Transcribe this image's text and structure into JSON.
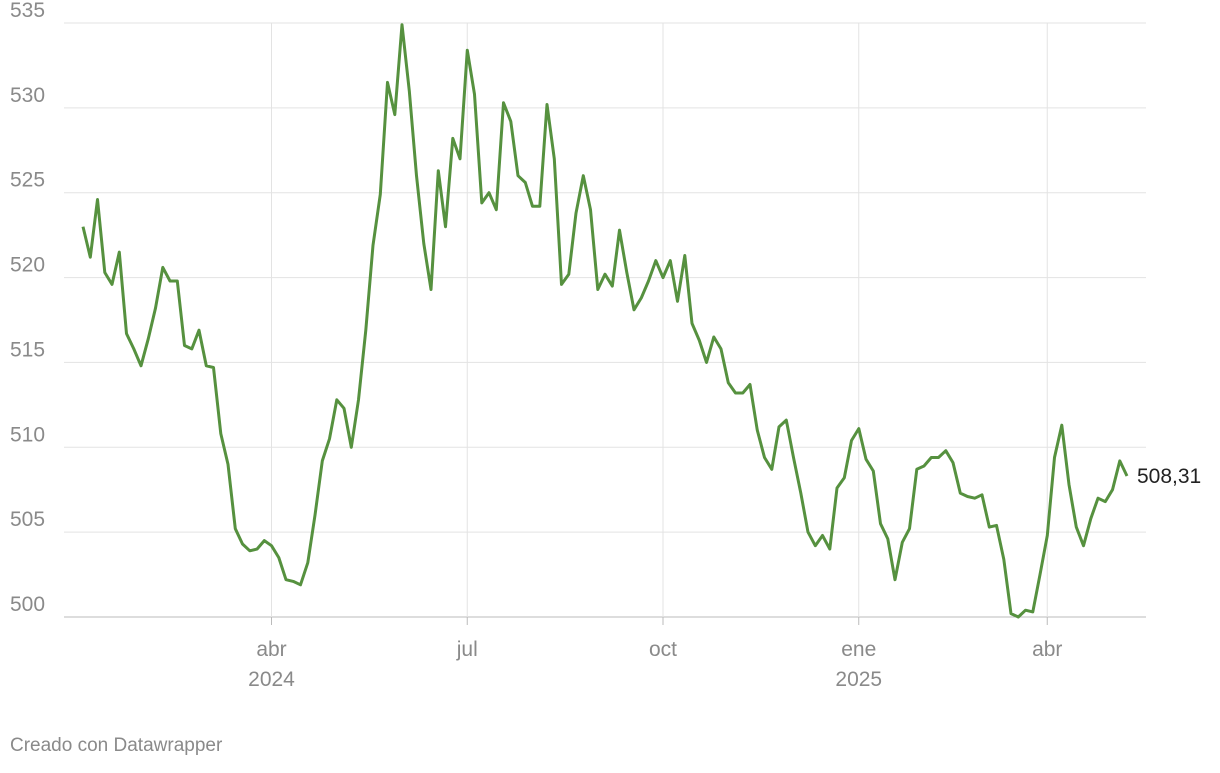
{
  "chart_data": {
    "type": "line",
    "values": [
      523.0,
      521.2,
      524.6,
      520.3,
      519.6,
      521.5,
      516.7,
      515.8,
      514.8,
      516.4,
      518.2,
      520.6,
      519.8,
      519.8,
      516.0,
      515.8,
      516.9,
      514.8,
      514.7,
      510.8,
      509.0,
      505.2,
      504.3,
      503.9,
      504.0,
      504.5,
      504.2,
      503.5,
      502.2,
      502.1,
      501.9,
      503.2,
      506.0,
      509.2,
      510.5,
      512.8,
      512.3,
      510.0,
      512.8,
      516.9,
      521.9,
      524.9,
      531.5,
      529.6,
      534.9,
      531.0,
      526.0,
      522.0,
      519.3,
      526.3,
      523.0,
      528.2,
      527.0,
      533.4,
      530.8,
      524.4,
      525.0,
      524.0,
      530.3,
      529.2,
      526.0,
      525.6,
      524.2,
      524.2,
      530.2,
      527.0,
      519.6,
      520.2,
      523.8,
      526.0,
      524.0,
      519.3,
      520.2,
      519.5,
      522.8,
      520.3,
      518.1,
      518.8,
      519.8,
      521.0,
      520.0,
      521.0,
      518.6,
      521.3,
      517.3,
      516.3,
      515.0,
      516.5,
      515.8,
      513.8,
      513.2,
      513.2,
      513.7,
      511.0,
      509.4,
      508.7,
      511.2,
      511.6,
      509.4,
      507.3,
      505.0,
      504.2,
      504.8,
      504.0,
      507.6,
      508.2,
      510.4,
      511.1,
      509.3,
      508.6,
      505.5,
      504.6,
      502.2,
      504.4,
      505.2,
      508.7,
      508.9,
      509.4,
      509.4,
      509.8,
      509.1,
      507.3,
      507.1,
      507.0,
      507.2,
      505.3,
      505.4,
      503.4,
      500.2,
      500.0,
      500.4,
      500.3,
      502.5,
      504.8,
      509.4,
      511.3,
      507.8,
      505.3,
      504.2,
      505.8,
      507.0,
      506.8,
      507.5,
      509.2,
      508.31
    ],
    "last_value_label": "508,31",
    "color": "#56913f",
    "ylim": [
      500,
      535
    ],
    "yticks": [
      500,
      505,
      510,
      515,
      520,
      525,
      530,
      535
    ],
    "xticks": [
      {
        "value": 26,
        "label": "abr",
        "sublabel": "2024"
      },
      {
        "value": 53,
        "label": "jul"
      },
      {
        "value": 80,
        "label": "oct"
      },
      {
        "value": 107,
        "label": "ene",
        "sublabel": "2025"
      },
      {
        "value": 133,
        "label": "abr"
      }
    ],
    "grid": true,
    "credit": "Creado con Datawrapper"
  }
}
